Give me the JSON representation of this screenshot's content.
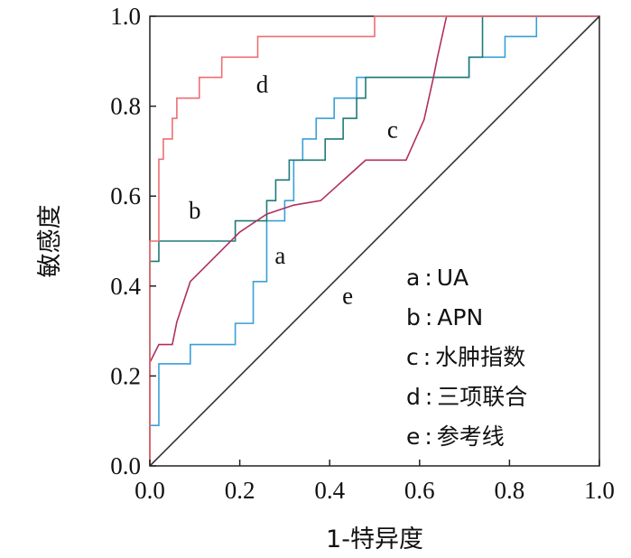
{
  "chart_data": {
    "type": "line",
    "title": "",
    "xlabel": "1-特异度",
    "ylabel": "敏感度",
    "xlim": [
      0,
      1
    ],
    "ylim": [
      0,
      1
    ],
    "grid": false,
    "legend_position": "bottom-right",
    "x_ticks": [
      "0.0",
      "0.2",
      "0.4",
      "0.6",
      "0.8",
      "1.0"
    ],
    "y_ticks": [
      "0.0",
      "0.2",
      "0.4",
      "0.6",
      "0.8",
      "1.0"
    ],
    "legend": [
      {
        "key": "a",
        "text": "UA"
      },
      {
        "key": "b",
        "text": "APN"
      },
      {
        "key": "c",
        "text": "水肿指数"
      },
      {
        "key": "d",
        "text": "三项联合"
      },
      {
        "key": "e",
        "text": "参考线"
      }
    ],
    "series": [
      {
        "key": "a",
        "color": "#3a9fd8",
        "step": true,
        "points": [
          [
            0,
            0
          ],
          [
            0,
            0.09
          ],
          [
            0.02,
            0.09
          ],
          [
            0.02,
            0.227
          ],
          [
            0.09,
            0.227
          ],
          [
            0.09,
            0.27
          ],
          [
            0.19,
            0.27
          ],
          [
            0.19,
            0.317
          ],
          [
            0.23,
            0.317
          ],
          [
            0.23,
            0.41
          ],
          [
            0.26,
            0.41
          ],
          [
            0.26,
            0.545
          ],
          [
            0.3,
            0.545
          ],
          [
            0.3,
            0.59
          ],
          [
            0.32,
            0.59
          ],
          [
            0.32,
            0.68
          ],
          [
            0.34,
            0.68
          ],
          [
            0.34,
            0.727
          ],
          [
            0.37,
            0.727
          ],
          [
            0.37,
            0.773
          ],
          [
            0.41,
            0.773
          ],
          [
            0.41,
            0.818
          ],
          [
            0.46,
            0.818
          ],
          [
            0.46,
            0.864
          ],
          [
            0.71,
            0.864
          ],
          [
            0.71,
            0.909
          ],
          [
            0.79,
            0.909
          ],
          [
            0.79,
            0.955
          ],
          [
            0.86,
            0.955
          ],
          [
            0.86,
            1.0
          ],
          [
            1,
            1
          ]
        ]
      },
      {
        "key": "b",
        "color": "#1f7a78",
        "step": true,
        "points": [
          [
            0,
            0
          ],
          [
            0,
            0.455
          ],
          [
            0.02,
            0.455
          ],
          [
            0.02,
            0.5
          ],
          [
            0.19,
            0.5
          ],
          [
            0.19,
            0.545
          ],
          [
            0.26,
            0.545
          ],
          [
            0.26,
            0.59
          ],
          [
            0.28,
            0.59
          ],
          [
            0.28,
            0.636
          ],
          [
            0.31,
            0.636
          ],
          [
            0.31,
            0.68
          ],
          [
            0.39,
            0.68
          ],
          [
            0.39,
            0.727
          ],
          [
            0.43,
            0.727
          ],
          [
            0.43,
            0.773
          ],
          [
            0.46,
            0.773
          ],
          [
            0.46,
            0.818
          ],
          [
            0.48,
            0.818
          ],
          [
            0.48,
            0.864
          ],
          [
            0.71,
            0.864
          ],
          [
            0.71,
            0.909
          ],
          [
            0.74,
            0.909
          ],
          [
            0.74,
            1.0
          ],
          [
            1,
            1
          ]
        ]
      },
      {
        "key": "c",
        "color": "#b03060",
        "step": false,
        "points": [
          [
            0,
            0
          ],
          [
            0,
            0.23
          ],
          [
            0.02,
            0.27
          ],
          [
            0.05,
            0.27
          ],
          [
            0.06,
            0.32
          ],
          [
            0.09,
            0.41
          ],
          [
            0.16,
            0.48
          ],
          [
            0.2,
            0.52
          ],
          [
            0.26,
            0.56
          ],
          [
            0.32,
            0.58
          ],
          [
            0.38,
            0.59
          ],
          [
            0.48,
            0.68
          ],
          [
            0.57,
            0.68
          ],
          [
            0.61,
            0.77
          ],
          [
            0.63,
            0.86
          ],
          [
            0.64,
            0.91
          ],
          [
            0.66,
            1.0
          ],
          [
            1,
            1
          ]
        ]
      },
      {
        "key": "d",
        "color": "#ec6f74",
        "step": true,
        "points": [
          [
            0,
            0
          ],
          [
            0,
            0.5
          ],
          [
            0.02,
            0.5
          ],
          [
            0.02,
            0.682
          ],
          [
            0.03,
            0.682
          ],
          [
            0.03,
            0.727
          ],
          [
            0.05,
            0.727
          ],
          [
            0.05,
            0.773
          ],
          [
            0.06,
            0.773
          ],
          [
            0.06,
            0.818
          ],
          [
            0.11,
            0.818
          ],
          [
            0.11,
            0.864
          ],
          [
            0.16,
            0.864
          ],
          [
            0.16,
            0.909
          ],
          [
            0.24,
            0.909
          ],
          [
            0.24,
            0.955
          ],
          [
            0.5,
            0.955
          ],
          [
            0.5,
            1.0
          ],
          [
            1,
            1
          ]
        ]
      },
      {
        "key": "e",
        "color": "#333333",
        "step": false,
        "points": [
          [
            0,
            0
          ],
          [
            1,
            1
          ]
        ]
      }
    ],
    "curve_labels": [
      {
        "key": "a",
        "text": "a",
        "x": 0.29,
        "y": 0.45
      },
      {
        "key": "b",
        "text": "b",
        "x": 0.1,
        "y": 0.55
      },
      {
        "key": "c",
        "text": "c",
        "x": 0.54,
        "y": 0.73
      },
      {
        "key": "d",
        "text": "d",
        "x": 0.25,
        "y": 0.83
      },
      {
        "key": "e",
        "text": "e",
        "x": 0.44,
        "y": 0.36
      }
    ]
  }
}
